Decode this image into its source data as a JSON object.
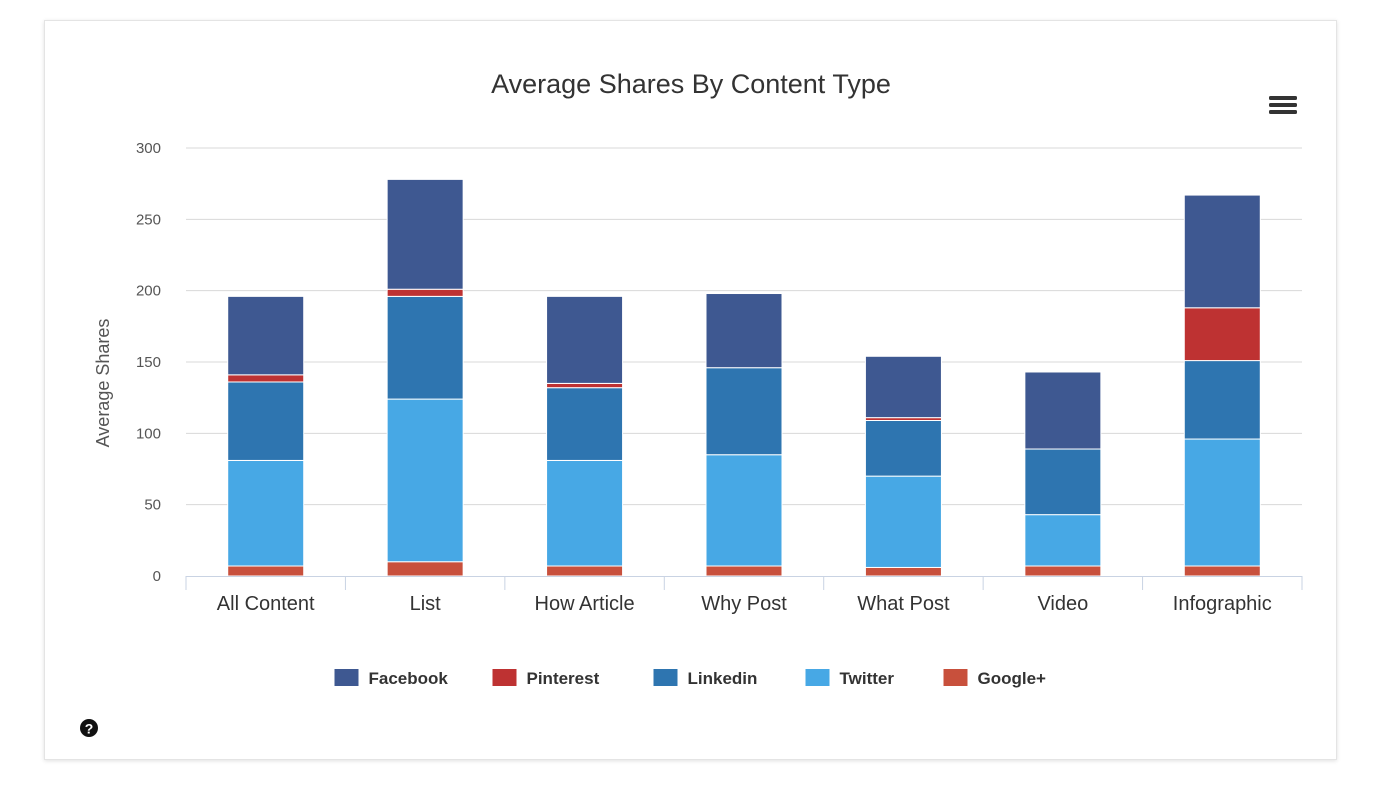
{
  "chart_data": {
    "type": "bar",
    "stacked": true,
    "title": "Average Shares By Content Type",
    "ylabel": "Average Shares",
    "xlabel": "",
    "ylim": [
      0,
      300
    ],
    "yticks": [
      0,
      50,
      100,
      150,
      200,
      250,
      300
    ],
    "grid": true,
    "legend_position": "bottom",
    "categories": [
      "All Content",
      "List",
      "How Article",
      "Why Post",
      "What Post",
      "Video",
      "Infographic"
    ],
    "series": [
      {
        "name": "Google+",
        "color": "#c8503c",
        "values": [
          7,
          10,
          7,
          7,
          6,
          7,
          7
        ]
      },
      {
        "name": "Twitter",
        "color": "#47a8e5",
        "values": [
          74,
          114,
          74,
          78,
          64,
          36,
          89
        ]
      },
      {
        "name": "Linkedin",
        "color": "#2e75b0",
        "values": [
          55,
          72,
          51,
          61,
          39,
          46,
          55
        ]
      },
      {
        "name": "Pinterest",
        "color": "#be3232",
        "values": [
          5,
          5,
          3,
          0,
          2,
          0,
          37
        ]
      },
      {
        "name": "Facebook",
        "color": "#3e5891",
        "values": [
          55,
          77,
          61,
          52,
          43,
          54,
          79
        ]
      }
    ],
    "legend_order": [
      "Facebook",
      "Pinterest",
      "Linkedin",
      "Twitter",
      "Google+"
    ]
  },
  "icons": {
    "menu": "hamburger-menu-icon",
    "help": "question-circle-icon"
  }
}
